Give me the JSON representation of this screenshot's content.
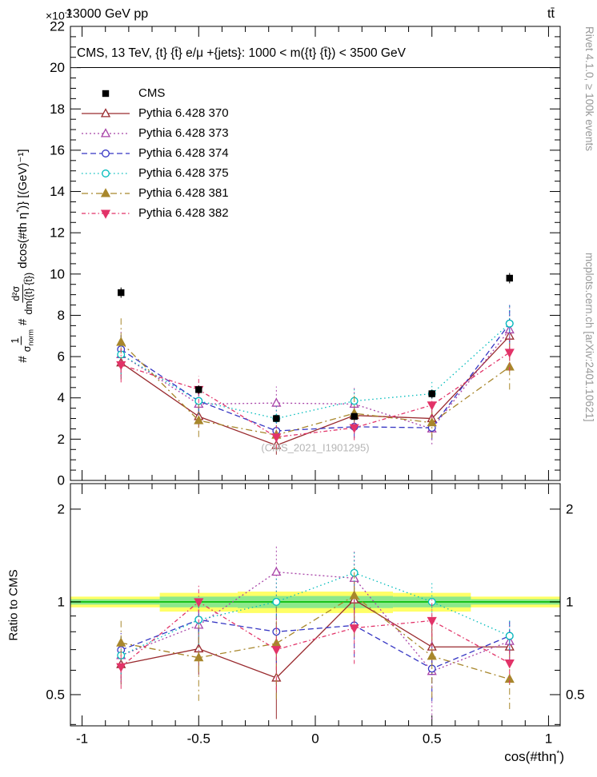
{
  "labels": {
    "multiplier_base": "×10",
    "multiplier_exp": "-3",
    "header_left": "13000 GeV pp",
    "header_right": "tt̄",
    "watermark": "(CMS_2021_I1901295)",
    "right_top": "Rivet 4.1.0, ≥ 100k events",
    "right_bottom": "mcplots.cern.ch [arXiv:2401.10621]",
    "ratio_ylabel": "Ratio to CMS",
    "xlabel_base": "cos(#thη",
    "xlabel_sup": "*",
    "xlabel_close": ")",
    "ylabel": {
      "prefix": "#",
      "frac1_num": "1",
      "frac1_den_base": "σ",
      "frac1_den_sub": "norm",
      "mid": "#",
      "frac2_num": "d²σ",
      "frac2_den": "dm({t} {t̄})",
      "suffix_pre": "dcos(#th η",
      "suffix_sup": "*",
      "suffix_post": ")} [(GeV)⁻¹]"
    }
  },
  "chart_data": {
    "type": "line",
    "title": "CMS, 13 TeV, {t} {t̄} e/μ +{jets}: 1000 < m({t} {t̄}) < 3500 GeV",
    "xlabel": "cos(#thη*)",
    "ylabel": "(1/σ_norm) d²σ / dm({t} {t̄}) dcos(#th η*) [(GeV)⁻¹]",
    "y_unit_multiplier": "×10⁻³",
    "x": [
      -0.833,
      -0.5,
      -0.167,
      0.167,
      0.5,
      0.833
    ],
    "bin_edges": [
      -1,
      -0.667,
      -0.333,
      0,
      0.333,
      0.667,
      1
    ],
    "xlim": [
      -1.05,
      1.05
    ],
    "ylim": [
      0,
      22
    ],
    "xticks": [
      -1,
      -0.5,
      0,
      0.5,
      1
    ],
    "ytick_step": 2,
    "grid": false,
    "legend_position": "upper-left-inside",
    "series": [
      {
        "name": "CMS",
        "marker": "square",
        "fill": true,
        "color": "#000000",
        "line": false,
        "dash": "",
        "values": [
          9.1,
          4.4,
          3.0,
          3.1,
          4.2,
          9.8
        ],
        "errors": [
          0.25,
          0.2,
          0.15,
          0.15,
          0.2,
          0.25
        ]
      },
      {
        "name": "Pythia 6.428 370",
        "marker": "triangle-up",
        "fill": false,
        "color": "#992a2e",
        "line": true,
        "dash": "",
        "values": [
          5.7,
          3.1,
          1.7,
          3.15,
          3.0,
          7.0
        ],
        "errors": [
          0.8,
          0.55,
          0.45,
          0.55,
          0.5,
          0.85
        ]
      },
      {
        "name": "Pythia 6.428 373",
        "marker": "triangle-up",
        "fill": false,
        "color": "#a844a8",
        "line": true,
        "dash": "2 3",
        "values": [
          6.1,
          3.7,
          3.75,
          3.7,
          2.5,
          7.3
        ],
        "errors": [
          1.1,
          0.75,
          0.8,
          0.85,
          0.75,
          1.1
        ]
      },
      {
        "name": "Pythia 6.428 374",
        "marker": "circle",
        "fill": false,
        "color": "#3535c3",
        "line": true,
        "dash": "7 4",
        "values": [
          6.35,
          3.85,
          2.4,
          2.6,
          2.55,
          7.6
        ],
        "errors": [
          0.85,
          0.6,
          0.5,
          0.55,
          0.55,
          0.9
        ]
      },
      {
        "name": "Pythia 6.428 375",
        "marker": "circle",
        "fill": false,
        "color": "#00bcbc",
        "line": true,
        "dash": "1.5 3.5",
        "values": [
          6.1,
          3.85,
          3.0,
          3.85,
          4.2,
          7.6
        ],
        "errors": [
          0.95,
          0.65,
          0.6,
          0.65,
          0.65,
          0.95
        ]
      },
      {
        "name": "Pythia 6.428 381",
        "marker": "triangle-up",
        "fill": true,
        "color": "#a8872c",
        "line": true,
        "dash": "8 4 2 4",
        "values": [
          6.7,
          2.9,
          2.2,
          3.25,
          2.8,
          5.5
        ],
        "errors": [
          1.25,
          0.8,
          0.75,
          0.85,
          0.75,
          1.1
        ]
      },
      {
        "name": "Pythia 6.428 382",
        "marker": "triangle-down",
        "fill": true,
        "color": "#e23368",
        "line": true,
        "dash": "5 3 1.5 3",
        "values": [
          5.6,
          4.4,
          2.1,
          2.55,
          3.65,
          6.2
        ],
        "errors": [
          0.85,
          0.65,
          0.55,
          0.6,
          0.65,
          0.9
        ]
      }
    ],
    "ratio": {
      "ylabel": "Ratio to CMS",
      "reference": "CMS",
      "scale": "log",
      "ylim": [
        0.396,
        2.42
      ],
      "yticks": [
        0.5,
        1,
        2
      ],
      "yticks_minor": [
        0.4,
        0.6,
        0.7,
        0.8,
        0.9
      ],
      "band_yellow_halfwidth": [
        0.04,
        0.07,
        0.08,
        0.08,
        0.07,
        0.04
      ],
      "band_green_halfwidth": [
        0.02,
        0.04,
        0.045,
        0.045,
        0.04,
        0.02
      ],
      "colors": {
        "yellow": "#ffff66",
        "green": "#8ce88c",
        "line": "#00bb00"
      }
    }
  }
}
